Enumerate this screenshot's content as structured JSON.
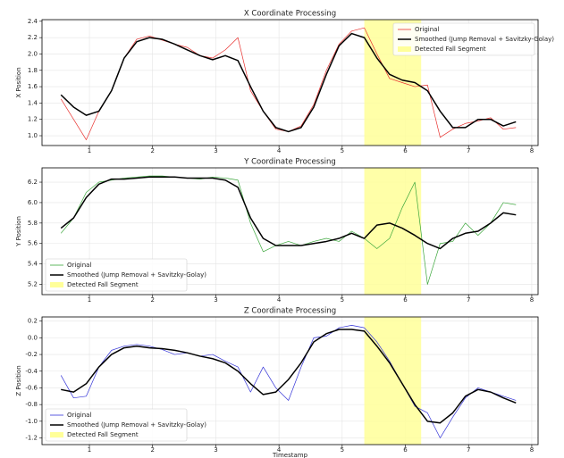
{
  "chart_data": [
    {
      "type": "line",
      "title": "X Coordinate Processing",
      "ylabel": "X Position",
      "x": [
        0.55,
        0.75,
        0.95,
        1.15,
        1.35,
        1.55,
        1.75,
        1.95,
        2.15,
        2.35,
        2.55,
        2.75,
        2.95,
        3.15,
        3.35,
        3.55,
        3.75,
        3.95,
        4.15,
        4.35,
        4.55,
        4.75,
        4.95,
        5.15,
        5.35,
        5.55,
        5.75,
        5.95,
        6.15,
        6.35,
        6.55,
        6.75,
        6.95,
        7.15,
        7.35,
        7.55,
        7.75
      ],
      "series": [
        {
          "name": "Original",
          "color": "#e8322f",
          "values": [
            1.45,
            1.2,
            0.95,
            1.3,
            1.55,
            1.95,
            2.18,
            2.22,
            2.17,
            2.12,
            2.08,
            1.98,
            1.95,
            2.05,
            2.2,
            1.55,
            1.3,
            1.08,
            1.05,
            1.12,
            1.38,
            1.8,
            2.12,
            2.28,
            2.32,
            2.0,
            1.7,
            1.65,
            1.6,
            1.62,
            0.98,
            1.08,
            1.15,
            1.18,
            1.22,
            1.08,
            1.1
          ]
        },
        {
          "name": "Smoothed (Jump Removal + Savitzky-Golay)",
          "color": "#000000",
          "values": [
            1.5,
            1.35,
            1.25,
            1.3,
            1.55,
            1.95,
            2.15,
            2.2,
            2.18,
            2.12,
            2.05,
            1.98,
            1.93,
            1.98,
            1.92,
            1.6,
            1.3,
            1.1,
            1.05,
            1.1,
            1.35,
            1.75,
            2.1,
            2.25,
            2.2,
            1.95,
            1.75,
            1.68,
            1.65,
            1.55,
            1.3,
            1.1,
            1.1,
            1.2,
            1.2,
            1.12,
            1.17
          ]
        }
      ],
      "span": {
        "name": "Detected Fall Segment",
        "start": 5.35,
        "end": 6.25,
        "color": "#ffff99"
      },
      "xlim": [
        0.25,
        8.1
      ],
      "xticks": [
        1,
        2,
        3,
        4,
        5,
        6,
        7,
        8
      ],
      "ylim": [
        0.88,
        2.42
      ],
      "yticks": [
        {
          "value": 1.0,
          "label": "1.0"
        },
        {
          "value": 1.2,
          "label": "1.2"
        },
        {
          "value": 1.4,
          "label": "1.4"
        },
        {
          "value": 1.6,
          "label": "1.6"
        },
        {
          "value": 1.8,
          "label": "1.8"
        },
        {
          "value": 2.0,
          "label": "2.0"
        },
        {
          "value": 2.2,
          "label": "2.2"
        },
        {
          "value": 2.4,
          "label": "2.4"
        }
      ],
      "grid": true,
      "legend": "upper right"
    },
    {
      "type": "line",
      "title": "Y Coordinate Processing",
      "ylabel": "Y Position",
      "x": [
        0.55,
        0.75,
        0.95,
        1.15,
        1.35,
        1.55,
        1.75,
        1.95,
        2.15,
        2.35,
        2.55,
        2.75,
        2.95,
        3.15,
        3.35,
        3.55,
        3.75,
        3.95,
        4.15,
        4.35,
        4.55,
        4.75,
        4.95,
        5.15,
        5.35,
        5.55,
        5.75,
        5.95,
        6.15,
        6.35,
        6.55,
        6.75,
        6.95,
        7.15,
        7.35,
        7.55,
        7.75
      ],
      "series": [
        {
          "name": "Original",
          "color": "#3aa63a",
          "values": [
            5.7,
            5.85,
            6.1,
            6.2,
            6.22,
            6.24,
            6.25,
            6.26,
            6.26,
            6.25,
            6.24,
            6.23,
            6.25,
            6.24,
            6.22,
            5.8,
            5.52,
            5.58,
            5.62,
            5.58,
            5.62,
            5.65,
            5.62,
            5.72,
            5.65,
            5.55,
            5.65,
            5.95,
            6.2,
            5.2,
            5.6,
            5.62,
            5.8,
            5.68,
            5.8,
            6.0,
            5.98
          ]
        },
        {
          "name": "Smoothed (Jump Removal + Savitzky-Golay)",
          "color": "#000000",
          "values": [
            5.75,
            5.85,
            6.05,
            6.18,
            6.23,
            6.23,
            6.24,
            6.25,
            6.25,
            6.25,
            6.24,
            6.24,
            6.24,
            6.22,
            6.15,
            5.85,
            5.65,
            5.58,
            5.58,
            5.58,
            5.6,
            5.62,
            5.65,
            5.7,
            5.65,
            5.78,
            5.8,
            5.75,
            5.68,
            5.6,
            5.55,
            5.65,
            5.7,
            5.72,
            5.8,
            5.9,
            5.88
          ]
        }
      ],
      "span": {
        "name": "Detected Fall Segment",
        "start": 5.35,
        "end": 6.25,
        "color": "#ffff99"
      },
      "xlim": [
        0.25,
        8.1
      ],
      "xticks": [
        1,
        2,
        3,
        4,
        5,
        6,
        7,
        8
      ],
      "ylim": [
        5.1,
        6.34
      ],
      "yticks": [
        5.2,
        5.4,
        5.6,
        5.8,
        {
          "value": 6.0,
          "label": "6.0"
        },
        6.2
      ],
      "grid": true,
      "legend": "lower left"
    },
    {
      "type": "line",
      "title": "Z Coordinate Processing",
      "ylabel": "Z Position",
      "xlabel": "Timestamp",
      "x": [
        0.55,
        0.75,
        0.95,
        1.15,
        1.35,
        1.55,
        1.75,
        1.95,
        2.15,
        2.35,
        2.55,
        2.75,
        2.95,
        3.15,
        3.35,
        3.55,
        3.75,
        3.95,
        4.15,
        4.35,
        4.55,
        4.75,
        4.95,
        5.15,
        5.35,
        5.55,
        5.75,
        5.95,
        6.15,
        6.35,
        6.55,
        6.75,
        6.95,
        7.15,
        7.35,
        7.55,
        7.75
      ],
      "series": [
        {
          "name": "Original",
          "color": "#3434d8",
          "values": [
            -0.45,
            -0.72,
            -0.7,
            -0.35,
            -0.15,
            -0.1,
            -0.08,
            -0.1,
            -0.14,
            -0.2,
            -0.18,
            -0.22,
            -0.2,
            -0.28,
            -0.35,
            -0.65,
            -0.35,
            -0.6,
            -0.75,
            -0.35,
            0.0,
            0.02,
            0.12,
            0.15,
            0.12,
            -0.05,
            -0.28,
            -0.55,
            -0.82,
            -0.9,
            -1.2,
            -0.95,
            -0.72,
            -0.6,
            -0.65,
            -0.7,
            -0.75
          ]
        },
        {
          "name": "Smoothed (Jump Removal + Savitzky-Golay)",
          "color": "#000000",
          "values": [
            -0.62,
            -0.65,
            -0.55,
            -0.35,
            -0.2,
            -0.12,
            -0.1,
            -0.12,
            -0.13,
            -0.15,
            -0.18,
            -0.22,
            -0.25,
            -0.3,
            -0.4,
            -0.55,
            -0.68,
            -0.65,
            -0.5,
            -0.3,
            -0.05,
            0.05,
            0.1,
            0.1,
            0.08,
            -0.1,
            -0.3,
            -0.55,
            -0.8,
            -1.0,
            -1.02,
            -0.9,
            -0.7,
            -0.62,
            -0.65,
            -0.72,
            -0.78
          ]
        }
      ],
      "span": {
        "name": "Detected Fall Segment",
        "start": 5.35,
        "end": 6.25,
        "color": "#ffff99"
      },
      "xlim": [
        0.25,
        8.1
      ],
      "xticks": [
        1,
        2,
        3,
        4,
        5,
        6,
        7,
        8
      ],
      "ylim": [
        -1.28,
        0.25
      ],
      "yticks": [
        -1.2,
        {
          "value": -1.0,
          "label": "-1.0"
        },
        -0.8,
        -0.6,
        -0.4,
        -0.2,
        {
          "value": 0.0,
          "label": "0.0"
        },
        0.2
      ],
      "grid": true,
      "legend": "lower left"
    }
  ]
}
